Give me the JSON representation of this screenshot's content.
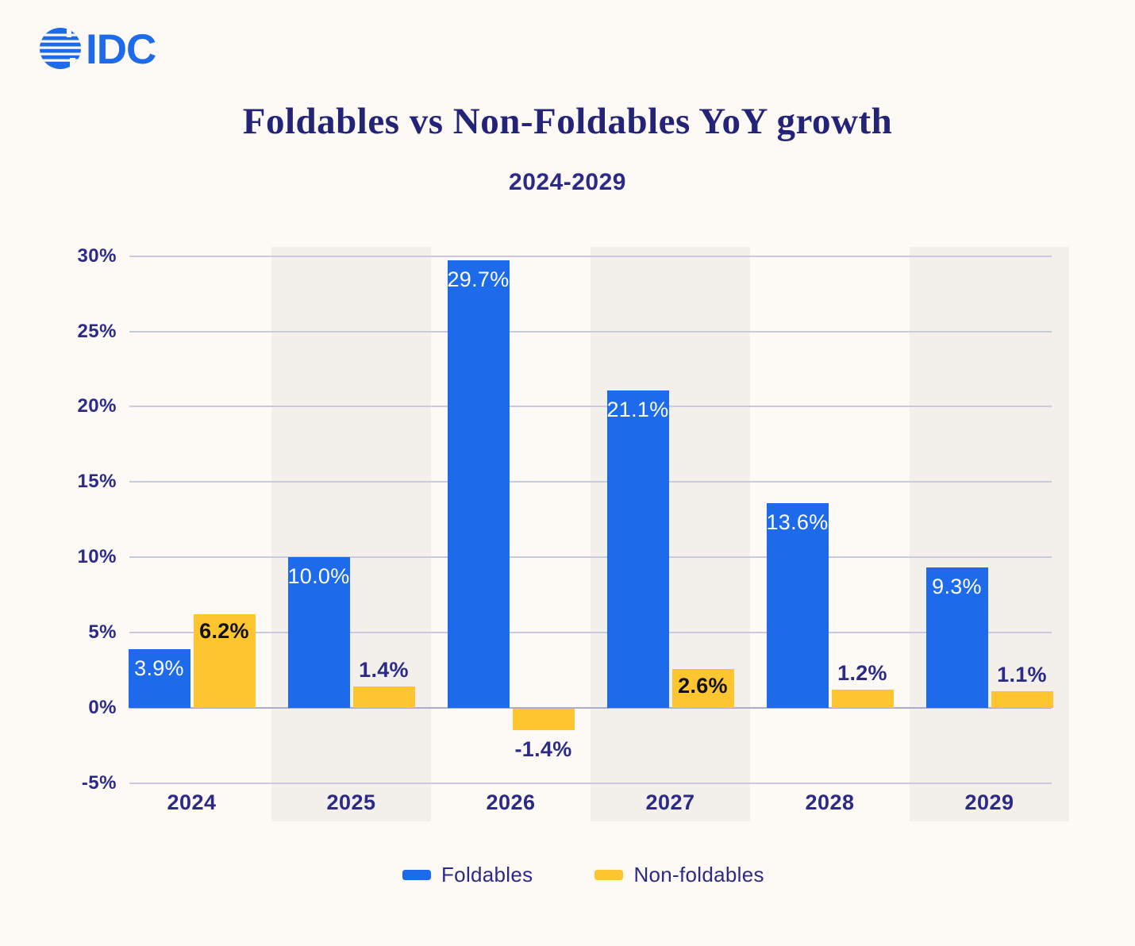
{
  "brand": {
    "logo_text": "IDC"
  },
  "header": {
    "title": "Foldables vs Non-Foldables YoY growth",
    "subtitle": "2024-2029"
  },
  "colors": {
    "foldables_blue": "#1D6BEA",
    "non_foldables_yellow": "#FDC630",
    "navy_text": "#2B2B87",
    "title_navy": "#232377",
    "background": "#FDF9F4",
    "column_band": "#F3EFEA",
    "gridline": "#C9C9DF"
  },
  "chart_data": {
    "type": "bar",
    "title": "Foldables vs Non-Foldables YoY growth",
    "subtitle": "2024-2029",
    "categories": [
      "2024",
      "2025",
      "2026",
      "2027",
      "2028",
      "2029"
    ],
    "series": [
      {
        "name": "Foldables",
        "color": "#1D6BEA",
        "values": [
          3.9,
          10.0,
          29.7,
          21.1,
          13.6,
          9.3
        ],
        "labels": [
          "3.9%",
          "10.0%",
          "29.7%",
          "21.1%",
          "13.6%",
          "9.3%"
        ]
      },
      {
        "name": "Non-foldables",
        "color": "#FDC630",
        "values": [
          6.2,
          1.4,
          -1.4,
          2.6,
          1.2,
          1.1
        ],
        "labels": [
          "6.2%",
          "1.4%",
          "-1.4%",
          "2.6%",
          "1.2%",
          "1.1%"
        ]
      }
    ],
    "y_ticks": [
      30,
      25,
      20,
      15,
      10,
      5,
      0,
      -5
    ],
    "y_tick_labels": [
      "30%",
      "25%",
      "20%",
      "15%",
      "10%",
      "5%",
      "0%",
      "-5%"
    ],
    "ylim": [
      -5,
      30
    ],
    "xlabel": "",
    "ylabel": "",
    "grid": "horizontal",
    "legend_position": "bottom",
    "banded_columns": [
      "2025",
      "2027",
      "2029"
    ]
  },
  "legend": {
    "items": [
      {
        "label": "Foldables",
        "color": "#1D6BEA"
      },
      {
        "label": "Non-foldables",
        "color": "#FDC630"
      }
    ]
  }
}
